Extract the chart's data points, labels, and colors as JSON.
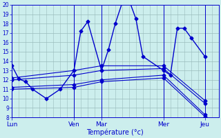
{
  "xlabel": "Température (°c)",
  "background_color": "#cceeed",
  "grid_color": "#99bbbb",
  "line_color": "#0000cc",
  "y_min": 8,
  "y_max": 20,
  "y_ticks": [
    8,
    9,
    10,
    11,
    12,
    13,
    14,
    15,
    16,
    17,
    18,
    19,
    20
  ],
  "x_tick_labels": [
    "Lun",
    "Ven",
    "Mar",
    "Mer",
    "Jeu"
  ],
  "x_tick_positions": [
    0,
    9,
    13,
    22,
    28
  ],
  "x_max": 30,
  "series_main": {
    "x": [
      0,
      1,
      2,
      3,
      5,
      7,
      9,
      10,
      11,
      13,
      14,
      15,
      16,
      17,
      18,
      19,
      22,
      23,
      24,
      25,
      26,
      28
    ],
    "y": [
      13.5,
      12.1,
      11.8,
      11.0,
      10.0,
      11.0,
      13.0,
      17.2,
      18.2,
      13.0,
      15.2,
      18.0,
      20.2,
      20.5,
      18.5,
      14.5,
      13.0,
      12.5,
      17.5,
      17.5,
      16.5,
      14.5
    ]
  },
  "series_flat": [
    {
      "x": [
        0,
        9,
        13,
        22,
        28
      ],
      "y": [
        11.0,
        11.2,
        11.8,
        12.2,
        8.1
      ]
    },
    {
      "x": [
        0,
        9,
        13,
        22,
        28
      ],
      "y": [
        11.2,
        11.5,
        12.0,
        12.5,
        8.3
      ]
    },
    {
      "x": [
        0,
        9,
        13,
        22,
        28
      ],
      "y": [
        12.0,
        12.5,
        13.0,
        13.2,
        9.5
      ]
    },
    {
      "x": [
        0,
        9,
        13,
        22,
        28
      ],
      "y": [
        12.2,
        13.0,
        13.5,
        13.5,
        9.8
      ]
    }
  ]
}
